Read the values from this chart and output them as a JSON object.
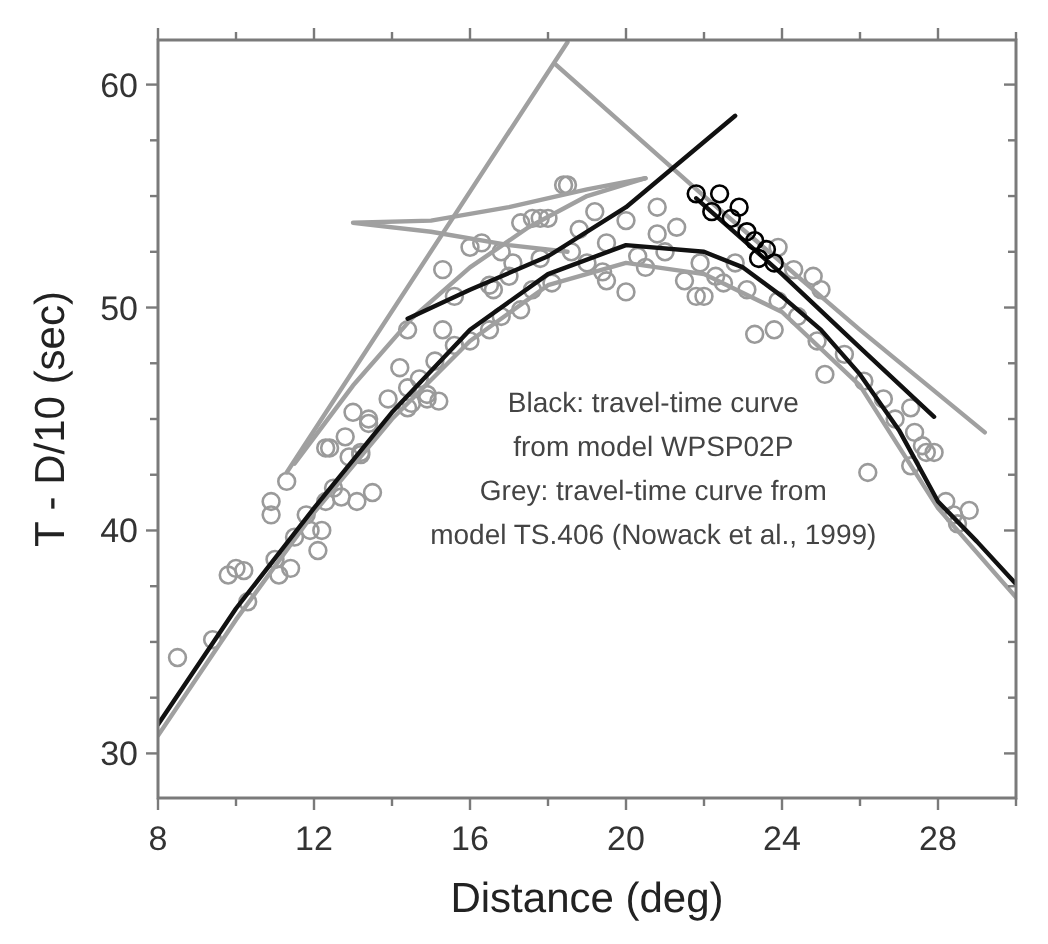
{
  "chart_data": {
    "type": "scatter",
    "xlabel": "Distance (deg)",
    "ylabel": "T - D/10 (sec)",
    "xlim": [
      8,
      30
    ],
    "ylim": [
      28,
      62
    ],
    "xticks": [
      8,
      {
        "value": 10,
        "label": null
      },
      12,
      {
        "value": 14,
        "label": null
      },
      16,
      {
        "value": 18,
        "label": null
      },
      20,
      {
        "value": 22,
        "label": null
      },
      24,
      {
        "value": 26,
        "label": null
      },
      28,
      {
        "value": 30,
        "label": null
      }
    ],
    "yticks": [
      {
        "value": 30,
        "label": "30"
      },
      {
        "value": 32.5,
        "label": null
      },
      {
        "value": 35,
        "label": null
      },
      {
        "value": 37.5,
        "label": null
      },
      40,
      {
        "value": 42.5,
        "label": null
      },
      {
        "value": 45,
        "label": null
      },
      {
        "value": 47.5,
        "label": null
      },
      50,
      {
        "value": 52.5,
        "label": null
      },
      {
        "value": 55,
        "label": null
      },
      {
        "value": 57.5,
        "label": null
      },
      60
    ],
    "annotations": [
      "Black: travel-time curve",
      "from model WPSP02P",
      "Grey: travel-time curve from",
      "model TS.406 (Nowack et al., 1999)"
    ],
    "series": [
      {
        "marker": "circle",
        "color": "#9a9a9a",
        "x": [
          8.5,
          9.4,
          9.8,
          10.0,
          10.2,
          10.3,
          10.9,
          10.9,
          11.0,
          11.1,
          11.4,
          11.3,
          11.5,
          11.8,
          11.9,
          12.1,
          12.2,
          12.3,
          12.4,
          12.5,
          12.7,
          12.9,
          13.1,
          13.2,
          13.5,
          13.0,
          13.4,
          14.5,
          15.2,
          14.9,
          12.3,
          13.2,
          12.8,
          13.4,
          13.9,
          14.4,
          14.4,
          14.9,
          14.7,
          15.1,
          15.3,
          15.6,
          16.0,
          16.5,
          16.8,
          17.3,
          17.6,
          18.1,
          16.0,
          16.3,
          16.8,
          17.3,
          17.6,
          18.0,
          18.4,
          17.1,
          16.6,
          15.6,
          14.4,
          14.2,
          15.3,
          18.5,
          20.8,
          17.8,
          20.0,
          17.0,
          19.4,
          20.8,
          21.3,
          18.6,
          19.5,
          20.3,
          21.8,
          22.3,
          22.8,
          23.3,
          23.9,
          24.3,
          24.8,
          25.0,
          23.8,
          24.4,
          24.9,
          25.1,
          25.6,
          26.1,
          26.6,
          26.9,
          27.4,
          27.7,
          27.3,
          22.5,
          23.1,
          23.9,
          21.9,
          26.2,
          27.3,
          27.6,
          27.9,
          28.4,
          28.5,
          28.8,
          28.2,
          19.0,
          19.5,
          20.5,
          21.0,
          21.5,
          20.0,
          22.0,
          16.5,
          17.8,
          18.8,
          19.2
        ],
        "values": [
          34.3,
          35.1,
          38.0,
          38.3,
          38.2,
          36.8,
          40.7,
          41.3,
          38.7,
          38.0,
          38.3,
          42.2,
          39.7,
          40.7,
          40.0,
          39.1,
          40.0,
          41.3,
          43.7,
          41.9,
          41.5,
          43.3,
          41.3,
          43.4,
          41.7,
          45.3,
          44.8,
          45.7,
          45.8,
          46.1,
          43.7,
          43.5,
          44.2,
          45.0,
          45.9,
          46.4,
          45.5,
          45.9,
          46.8,
          47.6,
          49.0,
          48.3,
          48.5,
          49.0,
          49.6,
          49.9,
          50.8,
          51.1,
          52.7,
          52.9,
          52.5,
          53.8,
          54.0,
          54.0,
          55.5,
          52.0,
          50.8,
          50.5,
          49.0,
          47.3,
          51.7,
          55.5,
          54.5,
          54.0,
          53.9,
          51.4,
          51.6,
          53.3,
          53.6,
          52.5,
          52.9,
          52.3,
          50.5,
          51.4,
          52.0,
          48.8,
          52.7,
          51.7,
          51.4,
          50.8,
          49.0,
          49.6,
          48.5,
          47.0,
          47.9,
          46.7,
          45.9,
          45.0,
          44.4,
          43.5,
          45.5,
          51.1,
          50.8,
          50.3,
          52.0,
          42.6,
          42.9,
          43.8,
          43.5,
          40.7,
          40.3,
          40.9,
          41.3,
          52.0,
          51.2,
          51.8,
          52.5,
          51.2,
          50.7,
          50.5,
          51.0,
          52.2,
          53.5,
          54.3
        ]
      },
      {
        "type": "line",
        "color": "#a0a0a0",
        "x": [
          8,
          10,
          12,
          14,
          16,
          18,
          20,
          22,
          24,
          26,
          28,
          30
        ],
        "values": [
          30.8,
          36,
          40.8,
          45,
          48.5,
          51,
          52,
          51.5,
          49.8,
          46.5,
          41,
          37
        ]
      },
      {
        "type": "line",
        "color": "#a0a0a0",
        "x": [
          11.3,
          18.5
        ],
        "values": [
          42.6,
          61.9
        ]
      },
      {
        "type": "line",
        "color": "#a0a0a0",
        "x": [
          11.5,
          13,
          14.5,
          16,
          17.5,
          19,
          20.5
        ],
        "values": [
          43,
          46.5,
          49.5,
          51.8,
          53.6,
          55,
          55.8
        ]
      },
      {
        "type": "line",
        "color": "#a0a0a0",
        "x": [
          20.5,
          19,
          17,
          15,
          13,
          15,
          17,
          18.5
        ],
        "values": [
          55.8,
          55.3,
          54.5,
          53.9,
          53.8,
          53.4,
          52.8,
          52.5
        ]
      },
      {
        "type": "line",
        "color": "#a0a0a0",
        "x": [
          18.2,
          22,
          26,
          29.2
        ],
        "values": [
          60.9,
          55,
          49,
          44.4
        ]
      },
      {
        "type": "line",
        "color": "#111111",
        "x": [
          8,
          10,
          12,
          14,
          16,
          18,
          20,
          22,
          23,
          24,
          25,
          26,
          27,
          28,
          29,
          30
        ],
        "values": [
          31.3,
          36.5,
          41,
          45.3,
          49,
          51.5,
          52.8,
          52.5,
          51.8,
          50.5,
          49,
          47,
          44.5,
          41.3,
          39.5,
          37.6
        ]
      },
      {
        "type": "line",
        "color": "#111111",
        "x": [
          14.4,
          16,
          18,
          20,
          22.8
        ],
        "values": [
          49.5,
          50.8,
          52.3,
          54.5,
          58.6
        ]
      },
      {
        "type": "line",
        "color": "#111111",
        "x": [
          21.8,
          24,
          26,
          27.9
        ],
        "values": [
          54.9,
          51.5,
          48.2,
          45.1
        ]
      },
      {
        "marker": "circle",
        "color": "#000000",
        "x": [
          21.8,
          22.4,
          22.9,
          23.1,
          23.6,
          22.2,
          22.7,
          23.3,
          23.8,
          23.4
        ],
        "values": [
          55.1,
          55.1,
          54.5,
          53.4,
          52.6,
          54.3,
          54.0,
          53.0,
          52.0,
          52.2
        ]
      }
    ]
  }
}
